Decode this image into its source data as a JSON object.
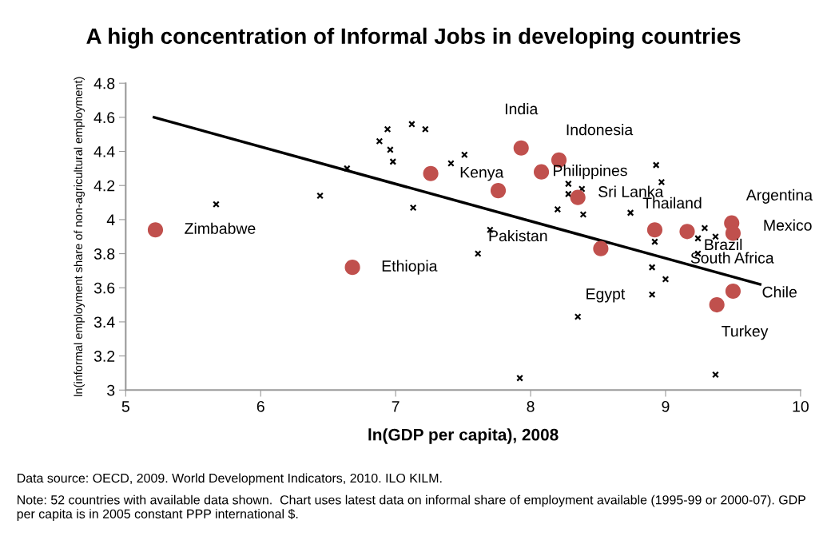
{
  "chart_data": {
    "type": "scatter",
    "title": "A high concentration of Informal Jobs in developing countries",
    "xlabel": "ln(GDP per capita), 2008",
    "ylabel": "ln(informal employment share of non-agricultural employment)",
    "xlim": [
      5,
      10
    ],
    "xticks": [
      5,
      6,
      7,
      8,
      9,
      10
    ],
    "ylim": [
      3,
      4.8
    ],
    "yticks": [
      3,
      3.2,
      3.4,
      3.6,
      3.8,
      4,
      4.2,
      4.4,
      4.6,
      4.8
    ],
    "grid": false,
    "series": [
      {
        "marker": "cross",
        "color": "#000000",
        "x": [
          5.67,
          6.44,
          6.64,
          6.88,
          6.94,
          6.96,
          6.98,
          7.12,
          7.22,
          7.13,
          7.41,
          7.51,
          7.61,
          7.7,
          7.92,
          8.2,
          8.28,
          8.28,
          8.38,
          8.39,
          8.35,
          8.74,
          8.93,
          8.97,
          8.92,
          8.9,
          9.0,
          8.9,
          9.29,
          9.24,
          9.37,
          9.24,
          9.37
        ],
        "values": [
          4.09,
          4.14,
          4.3,
          4.46,
          4.53,
          4.41,
          4.34,
          4.56,
          4.53,
          4.07,
          4.33,
          4.38,
          3.8,
          3.94,
          3.07,
          4.06,
          4.21,
          4.15,
          4.18,
          4.03,
          3.43,
          4.04,
          4.32,
          4.22,
          3.87,
          3.72,
          3.65,
          3.56,
          3.95,
          3.89,
          3.9,
          3.8,
          3.09
        ]
      },
      {
        "marker": "circle",
        "color": "#c0504d",
        "x": [
          5.22,
          6.68,
          7.26,
          7.93,
          8.21,
          8.08,
          7.76,
          8.35,
          8.52,
          8.92,
          9.16,
          9.49,
          9.5,
          9.5,
          9.38
        ],
        "values": [
          3.94,
          3.72,
          4.27,
          4.42,
          4.35,
          4.28,
          4.17,
          4.13,
          3.83,
          3.94,
          3.93,
          3.98,
          3.92,
          3.58,
          3.5
        ]
      },
      {
        "type": "line",
        "marker": "none",
        "line_style": "solid",
        "color": "#000000",
        "x": [
          5.21,
          9.7
        ],
        "values": [
          4.6,
          3.62
        ]
      }
    ],
    "annotations": [
      {
        "text": "Zimbabwe",
        "x": 5.22,
        "y": 3.94
      },
      {
        "text": "Ethiopia",
        "x": 6.68,
        "y": 3.72
      },
      {
        "text": "Kenya",
        "x": 7.26,
        "y": 4.27
      },
      {
        "text": "India",
        "x": 7.93,
        "y": 4.42
      },
      {
        "text": "Indonesia",
        "x": 8.21,
        "y": 4.35
      },
      {
        "text": "Philippines",
        "x": 8.08,
        "y": 4.28
      },
      {
        "text": "Pakistan",
        "x": 7.76,
        "y": 4.17
      },
      {
        "text": "Sri Lanka",
        "x": 8.35,
        "y": 4.13
      },
      {
        "text": "Egypt",
        "x": 8.52,
        "y": 3.83
      },
      {
        "text": "Thailand",
        "x": 8.92,
        "y": 3.94
      },
      {
        "text": "Brazil",
        "x": 9.16,
        "y": 3.93
      },
      {
        "text": "Argentina",
        "x": 9.49,
        "y": 3.98
      },
      {
        "text": "Mexico",
        "x": 9.5,
        "y": 3.92
      },
      {
        "text": "South Africa",
        "x": 9.24,
        "y": 3.8
      },
      {
        "text": "Chile",
        "x": 9.5,
        "y": 3.58
      },
      {
        "text": "Turkey",
        "x": 9.38,
        "y": 3.5
      },
      "Data source: OECD, 2009. World Development Indicators, 2010. ILO KILM.",
      "Note: 52 countries with available data shown.  Chart uses latest data on informal share of employment available (1995-99 or 2000-07). GDP per capita is in 2005 constant PPP international $."
    ]
  }
}
